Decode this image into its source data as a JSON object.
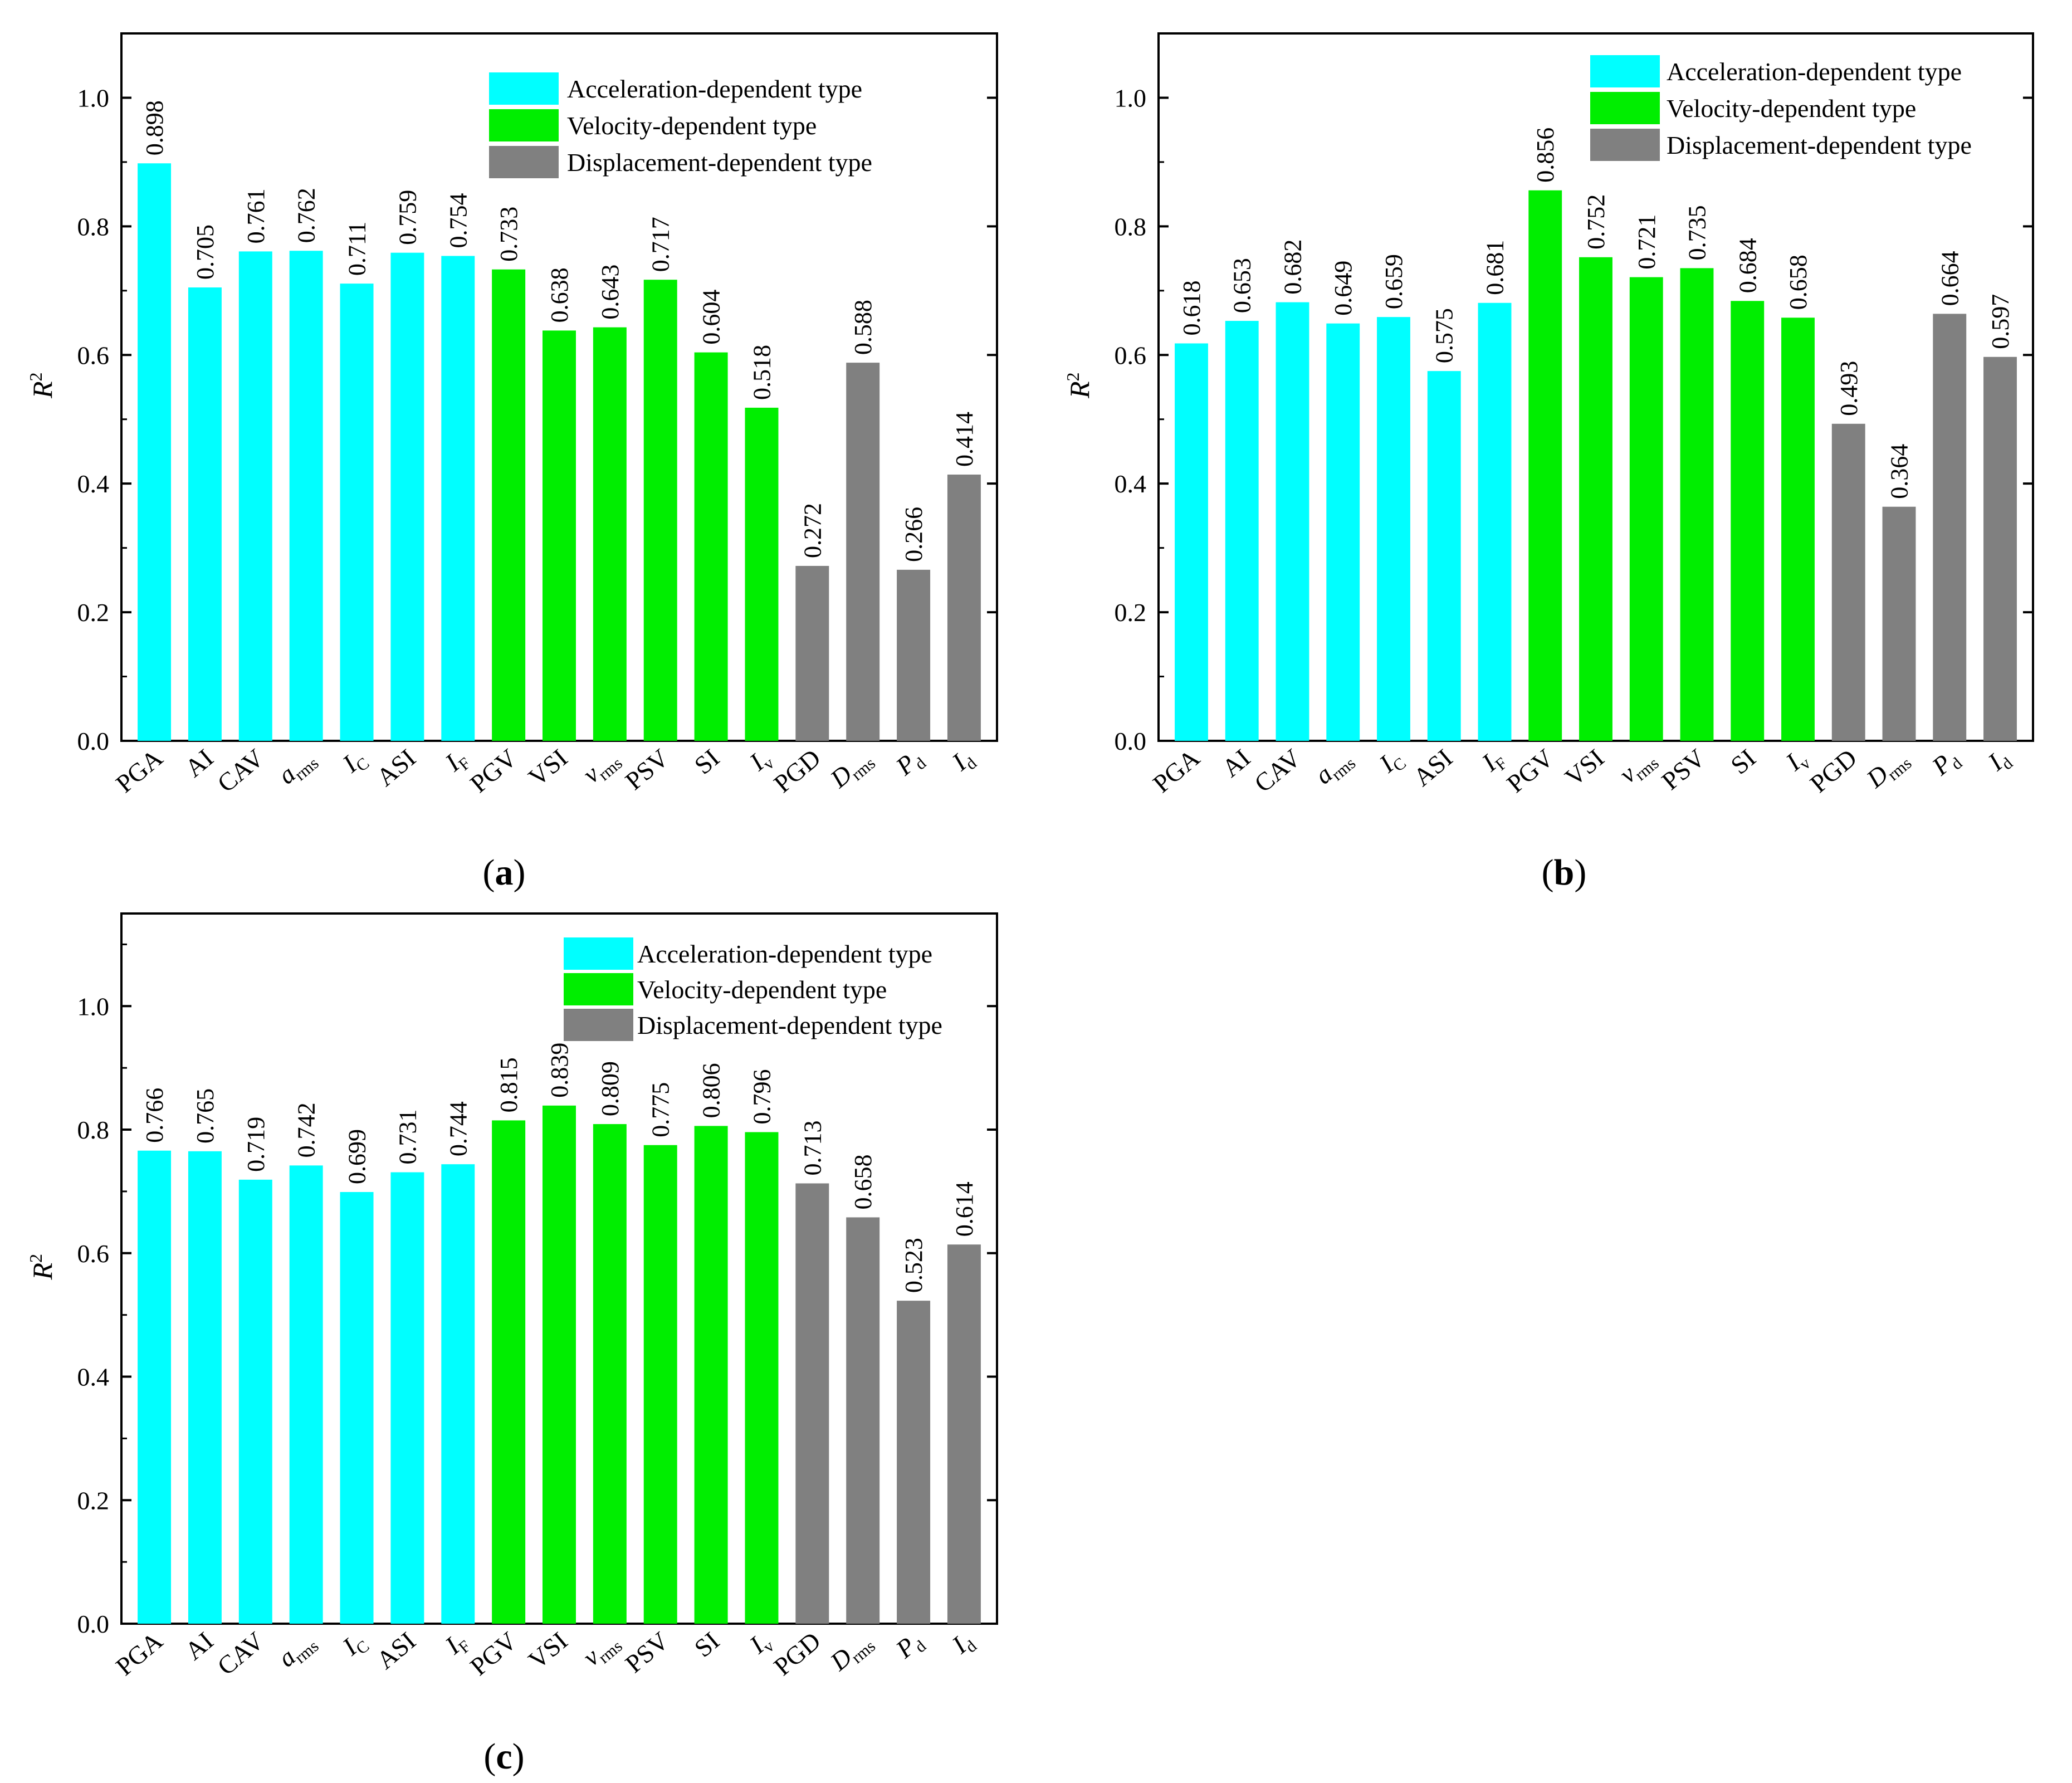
{
  "figure": {
    "legend": [
      {
        "label": "Acceleration-dependent type",
        "color": "#00FFFF"
      },
      {
        "label": "Velocity-dependent type",
        "color": "#00EE00"
      },
      {
        "label": "Displacement-dependent type",
        "color": "#808080"
      }
    ],
    "yticks": [
      "0.0",
      "0.2",
      "0.4",
      "0.6",
      "0.8",
      "1.0"
    ]
  },
  "chart_data": [
    {
      "type": "bar",
      "panel_label": "a",
      "ylabel": "R",
      "ylabel_sup": "2",
      "ylim": [
        0,
        1.1
      ],
      "legend_position": "top-right",
      "categories": [
        {
          "main": "PGA",
          "sub": "",
          "italic": false
        },
        {
          "main": "AI",
          "sub": "",
          "italic": false
        },
        {
          "main": "CAV",
          "sub": "",
          "italic": false
        },
        {
          "main": "a",
          "sub": "rms",
          "italic": true
        },
        {
          "main": "I",
          "sub": "C",
          "italic": true
        },
        {
          "main": "ASI",
          "sub": "",
          "italic": false
        },
        {
          "main": "I",
          "sub": "F",
          "italic": true
        },
        {
          "main": "PGV",
          "sub": "",
          "italic": false
        },
        {
          "main": "VSI",
          "sub": "",
          "italic": false
        },
        {
          "main": "v",
          "sub": "rms",
          "italic": true
        },
        {
          "main": "PSV",
          "sub": "",
          "italic": false
        },
        {
          "main": "SI",
          "sub": "",
          "italic": false
        },
        {
          "main": "I",
          "sub": "v",
          "italic": true
        },
        {
          "main": "PGD",
          "sub": "",
          "italic": false
        },
        {
          "main": "D",
          "sub": "rms",
          "italic": true
        },
        {
          "main": "P",
          "sub": "d",
          "italic": true
        },
        {
          "main": "I",
          "sub": "d",
          "italic": true
        }
      ],
      "values": [
        0.898,
        0.705,
        0.761,
        0.762,
        0.711,
        0.759,
        0.754,
        0.733,
        0.638,
        0.643,
        0.717,
        0.604,
        0.518,
        0.272,
        0.588,
        0.266,
        0.414
      ],
      "labels": [
        "0.898",
        "0.705",
        "0.761",
        "0.762",
        "0.711",
        "0.759",
        "0.754",
        "0.733",
        "0.638",
        "0.643",
        "0.717",
        "0.604",
        "0.518",
        "0.272",
        "0.588",
        "0.266",
        "0.414"
      ],
      "groups": [
        "acc",
        "acc",
        "acc",
        "acc",
        "acc",
        "acc",
        "acc",
        "vel",
        "vel",
        "vel",
        "vel",
        "vel",
        "vel",
        "dis",
        "dis",
        "dis",
        "dis"
      ]
    },
    {
      "type": "bar",
      "panel_label": "b",
      "ylabel": "R",
      "ylabel_sup": "2",
      "ylim": [
        0,
        1.1
      ],
      "legend_position": "top-right",
      "categories": [
        {
          "main": "PGA",
          "sub": "",
          "italic": false
        },
        {
          "main": "AI",
          "sub": "",
          "italic": false
        },
        {
          "main": "CAV",
          "sub": "",
          "italic": false
        },
        {
          "main": "a",
          "sub": "rms",
          "italic": true
        },
        {
          "main": "I",
          "sub": "C",
          "italic": true
        },
        {
          "main": "ASI",
          "sub": "",
          "italic": false
        },
        {
          "main": "I",
          "sub": "F",
          "italic": true
        },
        {
          "main": "PGV",
          "sub": "",
          "italic": false
        },
        {
          "main": "VSI",
          "sub": "",
          "italic": false
        },
        {
          "main": "v",
          "sub": "rms",
          "italic": true
        },
        {
          "main": "PSV",
          "sub": "",
          "italic": false
        },
        {
          "main": "SI",
          "sub": "",
          "italic": false
        },
        {
          "main": "I",
          "sub": "v",
          "italic": true
        },
        {
          "main": "PGD",
          "sub": "",
          "italic": false
        },
        {
          "main": "D",
          "sub": "rms",
          "italic": true
        },
        {
          "main": "P",
          "sub": "d",
          "italic": true
        },
        {
          "main": "I",
          "sub": "d",
          "italic": true
        }
      ],
      "values": [
        0.618,
        0.653,
        0.682,
        0.649,
        0.659,
        0.575,
        0.681,
        0.856,
        0.752,
        0.721,
        0.735,
        0.684,
        0.658,
        0.493,
        0.364,
        0.664,
        0.597
      ],
      "labels": [
        "0.618",
        "0.653",
        "0.682",
        "0.649",
        "0.659",
        "0.575",
        "0.681",
        "0.856",
        "0.752",
        "0.721",
        "0.735",
        "0.684",
        "0.658",
        "0.493",
        "0.364",
        "0.664",
        "0.597"
      ],
      "groups": [
        "acc",
        "acc",
        "acc",
        "acc",
        "acc",
        "acc",
        "acc",
        "vel",
        "vel",
        "vel",
        "vel",
        "vel",
        "vel",
        "dis",
        "dis",
        "dis",
        "dis"
      ]
    },
    {
      "type": "bar",
      "panel_label": "c",
      "ylabel": "R",
      "ylabel_sup": "2",
      "ylim": [
        0,
        1.15
      ],
      "legend_position": "top-right",
      "categories": [
        {
          "main": "PGA",
          "sub": "",
          "italic": false
        },
        {
          "main": "AI",
          "sub": "",
          "italic": false
        },
        {
          "main": "CAV",
          "sub": "",
          "italic": false
        },
        {
          "main": "a",
          "sub": "rms",
          "italic": true
        },
        {
          "main": "I",
          "sub": "C",
          "italic": true
        },
        {
          "main": "ASI",
          "sub": "",
          "italic": false
        },
        {
          "main": "I",
          "sub": "F",
          "italic": true
        },
        {
          "main": "PGV",
          "sub": "",
          "italic": false
        },
        {
          "main": "VSI",
          "sub": "",
          "italic": false
        },
        {
          "main": "v",
          "sub": "rms",
          "italic": true
        },
        {
          "main": "PSV",
          "sub": "",
          "italic": false
        },
        {
          "main": "SI",
          "sub": "",
          "italic": false
        },
        {
          "main": "I",
          "sub": "v",
          "italic": true
        },
        {
          "main": "PGD",
          "sub": "",
          "italic": false
        },
        {
          "main": "D",
          "sub": "rms",
          "italic": true
        },
        {
          "main": "P",
          "sub": "d",
          "italic": true
        },
        {
          "main": "I",
          "sub": "d",
          "italic": true
        }
      ],
      "values": [
        0.766,
        0.765,
        0.719,
        0.742,
        0.699,
        0.731,
        0.744,
        0.815,
        0.839,
        0.809,
        0.775,
        0.806,
        0.796,
        0.713,
        0.658,
        0.523,
        0.614
      ],
      "labels": [
        "0.766",
        "0.765",
        "0.719",
        "0.742",
        "0.699",
        "0.731",
        "0.744",
        "0.815",
        "0.839",
        "0.809",
        "0.775",
        "0.806",
        "0.796",
        "0.713",
        "0.658",
        "0.523",
        "0.614"
      ],
      "groups": [
        "acc",
        "acc",
        "acc",
        "acc",
        "acc",
        "acc",
        "acc",
        "vel",
        "vel",
        "vel",
        "vel",
        "vel",
        "vel",
        "dis",
        "dis",
        "dis",
        "dis"
      ]
    }
  ]
}
